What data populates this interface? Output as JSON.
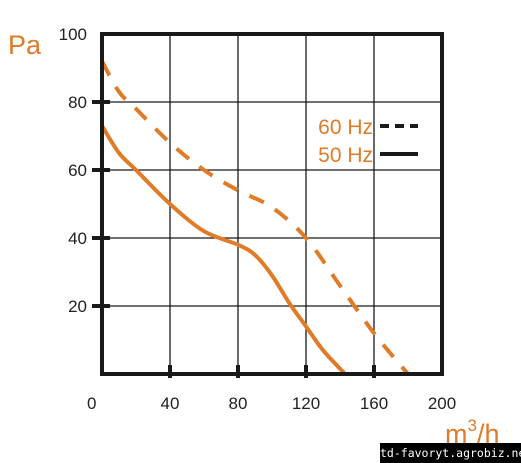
{
  "chart_data": {
    "type": "line",
    "title": "",
    "xlabel": {
      "base": "m",
      "sup": "3",
      "tail": "/h"
    },
    "ylabel": "Pa",
    "xlim": [
      0,
      200
    ],
    "ylim": [
      0,
      100
    ],
    "xticks": [
      "0",
      "40",
      "80",
      "120",
      "160",
      "200"
    ],
    "yticks": [
      "20",
      "40",
      "60",
      "80",
      "100"
    ],
    "grid": true,
    "legend_placement": "right",
    "series": [
      {
        "name": "60 Hz",
        "style": "dashed",
        "x": [
          0,
          10,
          20,
          40,
          60,
          80,
          100,
          120,
          140,
          160,
          180
        ],
        "y": [
          92,
          83,
          78,
          68,
          60,
          54,
          49,
          40,
          26,
          12,
          0
        ]
      },
      {
        "name": "50 Hz",
        "style": "solid",
        "x": [
          0,
          10,
          20,
          40,
          60,
          80,
          90,
          100,
          110,
          120,
          130,
          143
        ],
        "y": [
          73,
          65,
          60,
          50,
          42,
          38,
          35,
          29,
          21,
          14,
          7,
          0
        ]
      }
    ],
    "colors": {
      "curve": "#e07b28",
      "grid": "#1a1a1a",
      "text": "#222222"
    }
  },
  "watermark": "td-favoryt.agrobiz.net"
}
